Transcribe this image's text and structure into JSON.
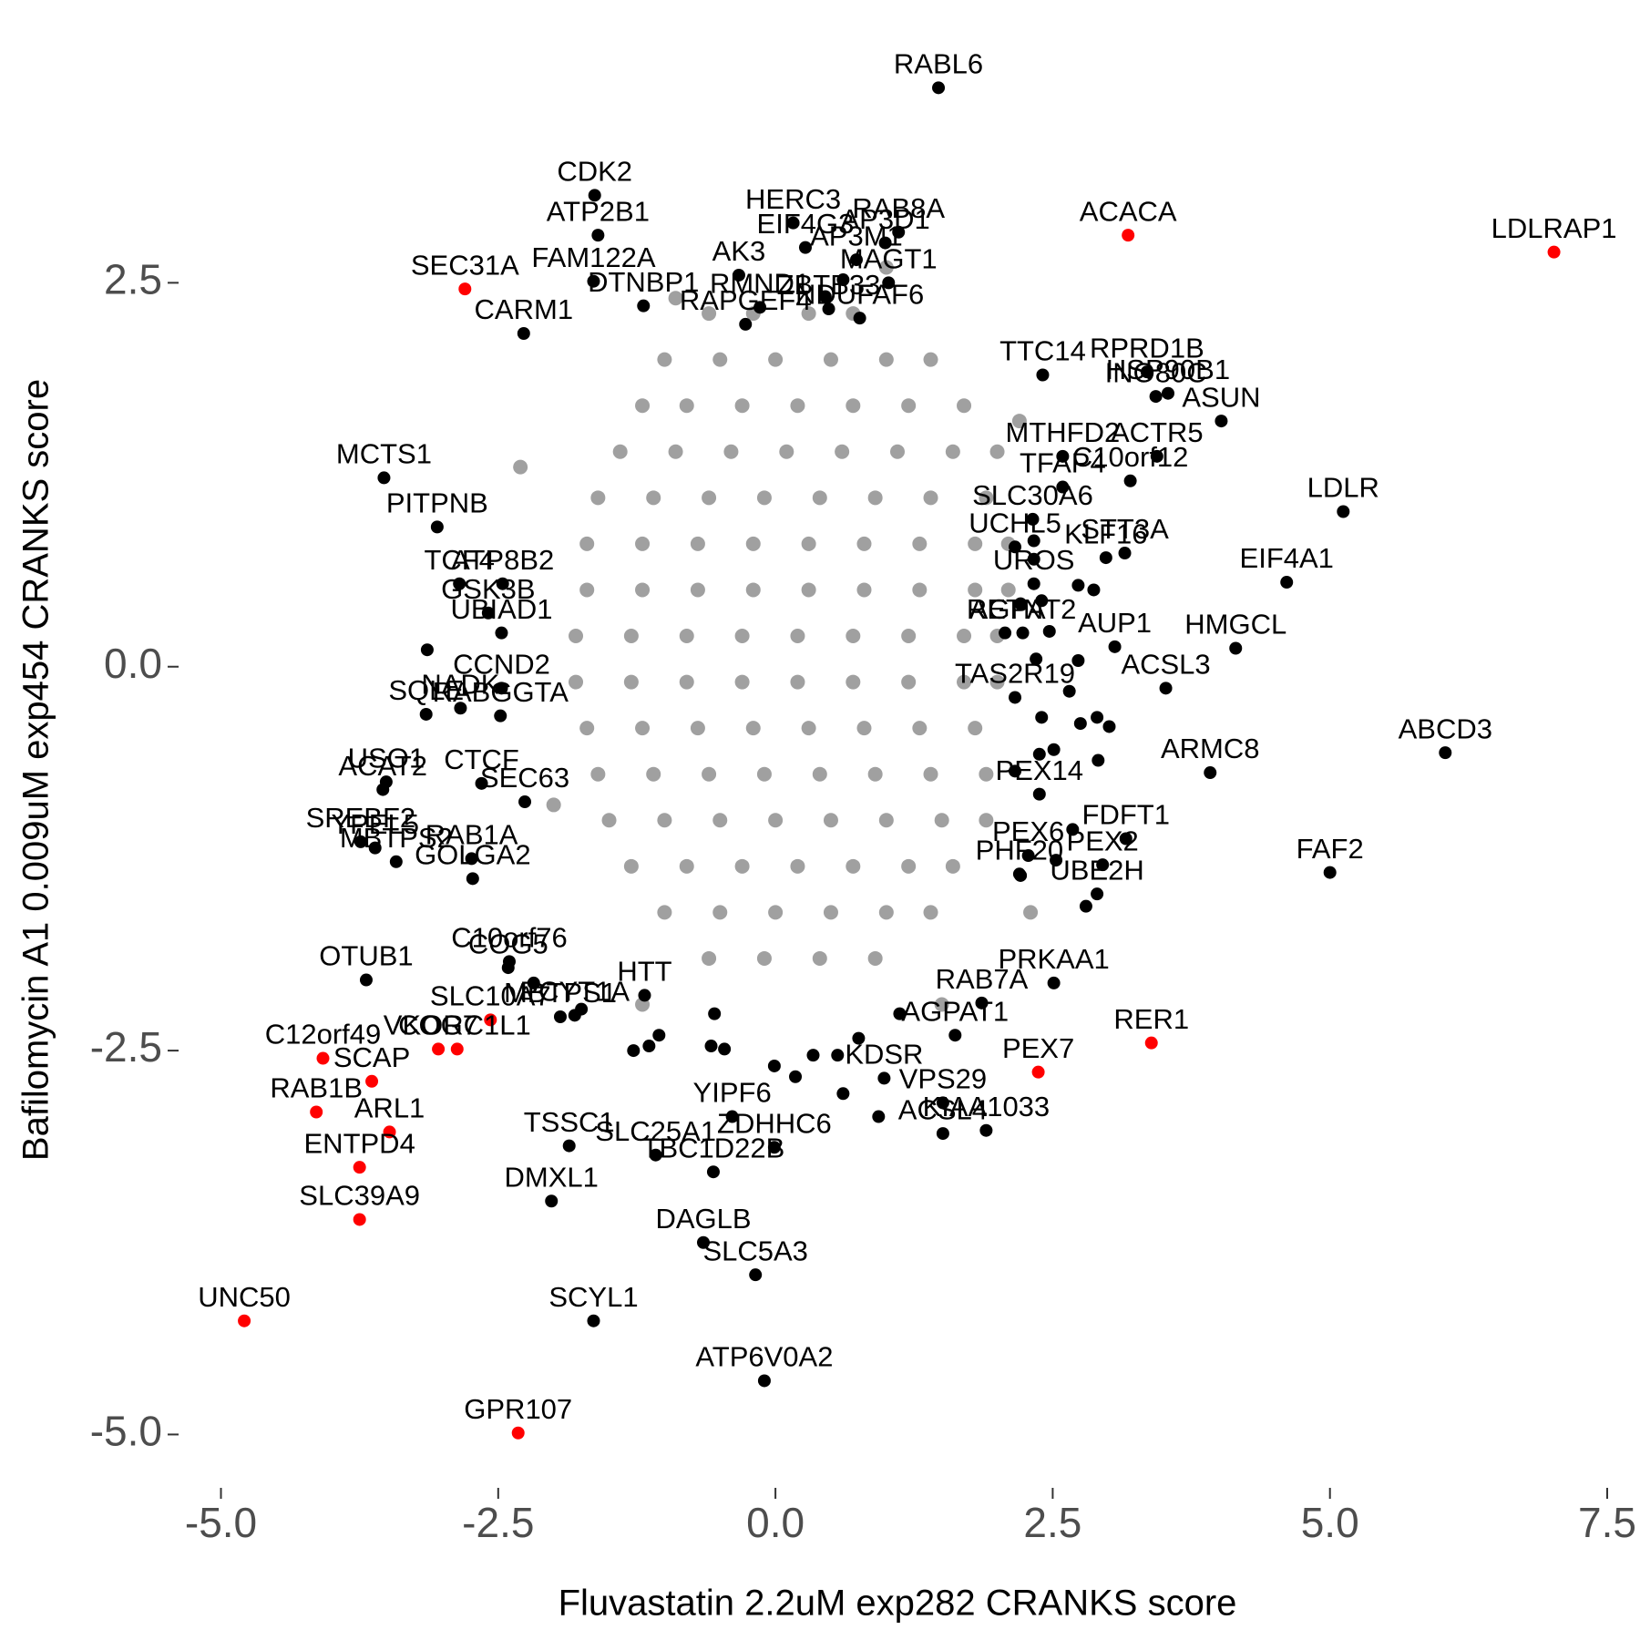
{
  "chart_data": {
    "type": "scatter",
    "xlabel": "Fluvastatin 2.2uM exp282 CRANKS score",
    "ylabel": "Bafilomycin A1 0.009uM exp454 CRANKS score",
    "xlim": [
      -5.3,
      7.5
    ],
    "ylim": [
      -5.3,
      3.95
    ],
    "xticks": [
      {
        "value": -5,
        "label": "-5.0"
      },
      -2.5,
      {
        "value": 0,
        "label": "0.0"
      },
      2.5,
      {
        "value": 5,
        "label": "5.0"
      },
      7.5
    ],
    "yticks": [
      {
        "value": -5,
        "label": "-5.0"
      },
      -2.5,
      {
        "value": 0,
        "label": "0.0"
      },
      2.5
    ],
    "grid": false,
    "series": [
      {
        "color": "#a0a0a0",
        "x": [
          -0.6,
          -0.2,
          0.3,
          0.7,
          -1.0,
          -0.5,
          0.0,
          0.5,
          1.0,
          1.4,
          -1.2,
          -0.8,
          -0.3,
          0.2,
          0.7,
          1.2,
          1.7,
          -1.4,
          -0.9,
          -0.4,
          0.1,
          0.6,
          1.1,
          1.6,
          2.0,
          -1.6,
          -1.1,
          -0.6,
          -0.1,
          0.4,
          0.9,
          1.4,
          1.9,
          -1.7,
          -1.2,
          -0.7,
          -0.2,
          0.3,
          0.8,
          1.3,
          1.8,
          2.1,
          -1.7,
          -1.2,
          -0.7,
          -0.2,
          0.3,
          0.8,
          1.3,
          1.8,
          2.1,
          -1.8,
          -1.3,
          -0.8,
          -0.3,
          0.2,
          0.7,
          1.2,
          1.7,
          2.0,
          -1.8,
          -1.3,
          -0.8,
          -0.3,
          0.2,
          0.7,
          1.2,
          1.7,
          2.0,
          -1.7,
          -1.2,
          -0.7,
          -0.2,
          0.3,
          0.8,
          1.3,
          1.8,
          -1.6,
          -1.1,
          -0.6,
          -0.1,
          0.4,
          0.9,
          1.4,
          1.9,
          -1.5,
          -1.0,
          -0.5,
          0.0,
          0.5,
          1.0,
          1.5,
          1.9,
          -1.3,
          -0.8,
          -0.3,
          0.2,
          0.7,
          1.2,
          1.6,
          -1.0,
          -0.5,
          0.0,
          0.5,
          1.0,
          1.4,
          -0.6,
          -0.1,
          0.4,
          0.9,
          -2.3,
          -2.0,
          2.2,
          2.3,
          -1.2,
          1.5,
          -0.9,
          1.0
        ],
        "values": [
          2.3,
          2.3,
          2.3,
          2.3,
          2.0,
          2.0,
          2.0,
          2.0,
          2.0,
          2.0,
          1.7,
          1.7,
          1.7,
          1.7,
          1.7,
          1.7,
          1.7,
          1.4,
          1.4,
          1.4,
          1.4,
          1.4,
          1.4,
          1.4,
          1.4,
          1.1,
          1.1,
          1.1,
          1.1,
          1.1,
          1.1,
          1.1,
          1.1,
          0.8,
          0.8,
          0.8,
          0.8,
          0.8,
          0.8,
          0.8,
          0.8,
          0.8,
          0.5,
          0.5,
          0.5,
          0.5,
          0.5,
          0.5,
          0.5,
          0.5,
          0.5,
          0.2,
          0.2,
          0.2,
          0.2,
          0.2,
          0.2,
          0.2,
          0.2,
          0.2,
          -0.1,
          -0.1,
          -0.1,
          -0.1,
          -0.1,
          -0.1,
          -0.1,
          -0.1,
          -0.1,
          -0.4,
          -0.4,
          -0.4,
          -0.4,
          -0.4,
          -0.4,
          -0.4,
          -0.4,
          -0.7,
          -0.7,
          -0.7,
          -0.7,
          -0.7,
          -0.7,
          -0.7,
          -0.7,
          -1.0,
          -1.0,
          -1.0,
          -1.0,
          -1.0,
          -1.0,
          -1.0,
          -1.0,
          -1.3,
          -1.3,
          -1.3,
          -1.3,
          -1.3,
          -1.3,
          -1.3,
          -1.6,
          -1.6,
          -1.6,
          -1.6,
          -1.6,
          -1.6,
          -1.9,
          -1.9,
          -1.9,
          -1.9,
          1.3,
          -0.9,
          1.6,
          -1.6,
          -2.2,
          -2.2,
          2.4,
          2.6
        ]
      },
      {
        "color": "#000000",
        "x": [
          0.45,
          0.61,
          2.33,
          2.33,
          2.21,
          2.4,
          2.73,
          2.87,
          2.47,
          2.73,
          2.35,
          2.65,
          2.4,
          2.75,
          2.9,
          3.01,
          2.51,
          2.38,
          2.91,
          2.16,
          2.68,
          2.53,
          2.21,
          2.8,
          -1.14,
          -1.28,
          -1.05,
          -0.55,
          -0.58,
          -0.46,
          -0.01,
          0.18,
          0.34,
          0.56,
          0.75,
          0.61,
          0.93,
          1.12,
          -1.75,
          -2.18,
          -3.14
        ],
        "values": [
          2.41,
          2.52,
          0.82,
          0.7,
          0.41,
          0.43,
          0.53,
          0.5,
          0.23,
          0.04,
          0.05,
          -0.16,
          -0.33,
          -0.37,
          -0.33,
          -0.39,
          -0.54,
          -0.57,
          -0.61,
          -0.68,
          -1.06,
          -1.26,
          -1.36,
          -1.56,
          -2.47,
          -2.5,
          -2.4,
          -2.26,
          -2.47,
          -2.49,
          -2.6,
          -2.67,
          -2.53,
          -2.53,
          -2.42,
          -2.78,
          -2.93,
          -2.26,
          -2.23,
          -2.06,
          0.11
        ]
      },
      {
        "color": "#000000",
        "labels": [
          "RABL6",
          "CDK2",
          "ATP2B1",
          "HERC3",
          "EIF4G3",
          "AP3M1",
          "RAB8A",
          "AP3D1",
          "AK3",
          "MAGT1",
          "FAM122A",
          "CARM1",
          "DTNBP1",
          "RMND1",
          "RAPGEF4",
          "ZBTB33",
          "NDUFAF6",
          "TTC14",
          "RPRD1B",
          "HSP90B1",
          "INO80C",
          "ASUN",
          "MTHFD2",
          "TFAP4",
          "ACTR5",
          "C10orf12",
          "SLC30A6",
          "UCHL5",
          "STT3A",
          "LDLR",
          "KLF16",
          "EIF4A1",
          "UROS",
          "MCTS1",
          "PITPNB",
          "TCF4",
          "ATP8B2",
          "GSK3B",
          "UBIAD1",
          "AUP1",
          "HMGCL",
          "RETN",
          "AGPAT2",
          "TAS2R19",
          "ACSL3",
          "CCND2",
          "SQLE",
          "NADK",
          "RABGGTA",
          "USO1",
          "ACAT2",
          "CTCF",
          "SEC63",
          "ABCD3",
          "ARMC8",
          "PEX14",
          "FDFT1",
          "SREBF2",
          "YPEL5",
          "MBTPS2",
          "RAB1A",
          "GOLGA2",
          "PEX6",
          "PEX2",
          "FAF2",
          "UBE2H",
          "PHF20",
          "C10orf76",
          "COG5",
          "OTUB1",
          "PRKAA1",
          "HTT",
          "PCYT1A",
          "MBTPS1",
          "RAB7A",
          "AGPAT1",
          "KDSR",
          "VPS29",
          "KIAA1033",
          "ACSL4",
          "YIPF6",
          "TSSC1",
          "SLC25A1",
          "ZDHHC6",
          "TBC1D22B",
          "DMXL1",
          "DAGLB",
          "SLC5A3",
          "SCYL1",
          "ATP6V0A2"
        ],
        "x": [
          1.47,
          -1.63,
          -1.6,
          0.16,
          0.27,
          0.73,
          1.11,
          0.99,
          -0.33,
          1.02,
          -1.64,
          -2.27,
          -1.19,
          -0.14,
          -0.27,
          0.48,
          0.76,
          2.41,
          3.35,
          3.54,
          3.43,
          4.02,
          2.59,
          2.59,
          3.44,
          3.2,
          2.32,
          2.16,
          3.15,
          5.12,
          2.98,
          4.61,
          2.33,
          -3.53,
          -3.05,
          -2.85,
          -2.46,
          -2.59,
          -2.47,
          3.06,
          4.15,
          2.07,
          2.23,
          2.16,
          3.52,
          -2.47,
          -3.15,
          -2.84,
          -2.48,
          -3.51,
          -3.54,
          -2.65,
          -2.26,
          6.04,
          3.92,
          2.38,
          3.16,
          -3.74,
          -3.61,
          -3.42,
          -2.74,
          -2.73,
          2.28,
          2.95,
          5.0,
          2.9,
          2.2,
          -2.4,
          -2.41,
          -3.69,
          2.51,
          -1.18,
          -1.81,
          -1.94,
          1.86,
          1.62,
          0.98,
          1.51,
          1.9,
          1.51,
          -0.39,
          -1.86,
          -1.08,
          -0.01,
          -0.56,
          -2.02,
          -0.65,
          -0.18,
          -1.64,
          -0.1
        ],
        "values": [
          3.77,
          3.07,
          2.81,
          2.89,
          2.73,
          2.65,
          2.83,
          2.76,
          2.55,
          2.5,
          2.51,
          2.17,
          2.35,
          2.34,
          2.23,
          2.33,
          2.27,
          1.9,
          1.92,
          1.78,
          1.76,
          1.6,
          1.37,
          1.17,
          1.37,
          1.21,
          0.96,
          0.78,
          0.74,
          1.01,
          0.71,
          0.55,
          0.54,
          1.23,
          0.91,
          0.54,
          0.54,
          0.35,
          0.22,
          0.13,
          0.12,
          0.22,
          0.22,
          -0.2,
          -0.14,
          -0.14,
          -0.31,
          -0.27,
          -0.32,
          -0.75,
          -0.8,
          -0.76,
          -0.88,
          -0.56,
          -0.69,
          -0.83,
          -1.12,
          -1.14,
          -1.18,
          -1.27,
          -1.25,
          -1.38,
          -1.23,
          -1.29,
          -1.34,
          -1.48,
          -1.35,
          -1.92,
          -1.96,
          -2.04,
          -2.06,
          -2.14,
          -2.27,
          -2.28,
          -2.19,
          -2.4,
          -2.68,
          -2.84,
          -3.02,
          -3.04,
          -2.93,
          -3.12,
          -3.18,
          -3.13,
          -3.29,
          -3.48,
          -3.75,
          -3.96,
          -4.26,
          -4.65
        ]
      },
      {
        "color": "#ff0000",
        "labels": [
          "SEC31A",
          "ACACA",
          "LDLRAP1",
          "SLC10A7",
          "COG7",
          "VKORC1L1",
          "C12orf49",
          "SCAP",
          "RAB1B",
          "ARL1",
          "ENTPD4",
          "SLC39A9",
          "UNC50",
          "GPR107",
          "PEX7",
          "RER1"
        ],
        "x": [
          -2.8,
          3.18,
          7.02,
          -2.57,
          -3.04,
          -2.87,
          -4.08,
          -3.64,
          -4.14,
          -3.48,
          -3.75,
          -3.75,
          -4.79,
          -2.32,
          2.37,
          3.39
        ],
        "values": [
          2.46,
          2.81,
          2.7,
          -2.3,
          -2.49,
          -2.49,
          -2.55,
          -2.7,
          -2.9,
          -3.03,
          -3.26,
          -3.6,
          -4.26,
          -4.99,
          -2.64,
          -2.45
        ]
      }
    ]
  }
}
